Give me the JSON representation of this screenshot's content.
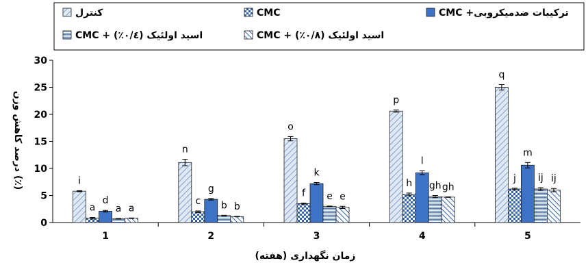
{
  "chart_data": {
    "type": "bar",
    "categories": [
      "1",
      "2",
      "3",
      "4",
      "5"
    ],
    "xlabel": "زمان نگهداری (هفته)",
    "ylabel": "درصد کاهش وزن (٪)",
    "ylim": [
      0,
      30
    ],
    "yticks": [
      "0",
      "5",
      "10",
      "15",
      "20",
      "25",
      "30"
    ],
    "legend_placement": "top",
    "grid": false,
    "series": [
      {
        "name": "کنترل",
        "pattern": "diagonal-light",
        "values": [
          5.8,
          11.1,
          15.5,
          20.6,
          25.0
        ],
        "errors": [
          0.1,
          0.6,
          0.4,
          0.2,
          0.5
        ],
        "letters": [
          "i",
          "n",
          "o",
          "p",
          "q"
        ]
      },
      {
        "name": "CMC",
        "pattern": "checker",
        "values": [
          0.8,
          2.0,
          3.5,
          5.2,
          6.2
        ],
        "errors": [
          0.15,
          0.15,
          0.1,
          0.25,
          0.15
        ],
        "letters": [
          "a",
          "c",
          "f",
          "h",
          "j"
        ]
      },
      {
        "name": "ترکیبات ضدمیکروبی+ CMC",
        "pattern": "solid-blue",
        "values": [
          2.1,
          4.3,
          7.2,
          9.2,
          10.6
        ],
        "errors": [
          0.15,
          0.15,
          0.2,
          0.35,
          0.5
        ],
        "letters": [
          "d",
          "g",
          "k",
          "l",
          "m"
        ]
      },
      {
        "name": "اسید اولئیک (٠/٤٪) + CMC",
        "pattern": "horizontal-brick",
        "values": [
          0.7,
          1.3,
          3.0,
          4.8,
          6.2
        ],
        "errors": [
          0.05,
          0.05,
          0.05,
          0.2,
          0.25
        ],
        "letters": [
          "a",
          "b",
          "e",
          "gh",
          "ij"
        ]
      },
      {
        "name": "اسید اولئیک (٠/٨٪) + CMC",
        "pattern": "diagonal-dense",
        "values": [
          0.8,
          1.1,
          2.8,
          4.7,
          6.0
        ],
        "errors": [
          0.05,
          0.05,
          0.2,
          0.05,
          0.3
        ],
        "letters": [
          "a",
          "b",
          "e",
          "gh",
          "ij"
        ]
      }
    ]
  }
}
